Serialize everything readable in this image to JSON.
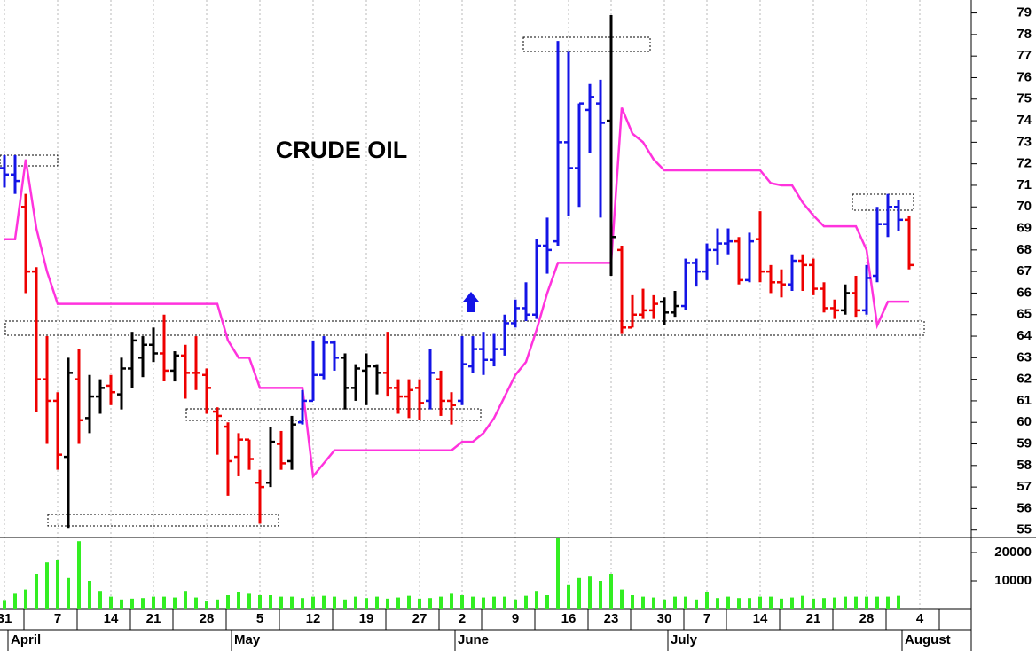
{
  "chart_data": {
    "type": "ohlc",
    "title": "CRUDE OIL",
    "categories": [
      "31",
      null,
      null,
      null,
      null,
      "7",
      null,
      null,
      null,
      null,
      "14",
      null,
      null,
      null,
      "21",
      null,
      null,
      null,
      null,
      "28",
      null,
      null,
      null,
      null,
      "5",
      null,
      null,
      null,
      null,
      "12",
      null,
      null,
      null,
      null,
      "19",
      null,
      null,
      null,
      null,
      "27",
      null,
      null,
      null,
      "2",
      null,
      null,
      null,
      null,
      "9",
      null,
      null,
      null,
      null,
      "16",
      null,
      null,
      null,
      "23",
      null,
      null,
      null,
      null,
      "30",
      null,
      null,
      null,
      "7",
      null,
      null,
      null,
      null,
      "14",
      null,
      null,
      null,
      null,
      "21",
      null,
      null,
      null,
      null,
      "28",
      null,
      null,
      null,
      null,
      "4"
    ],
    "months": [
      "April",
      "May",
      "June",
      "July",
      "August"
    ],
    "open": [
      71.8,
      71.5,
      70.0,
      67.0,
      62.0,
      61.0,
      58.4,
      62.0,
      60.2,
      61.2,
      61.7,
      61.3,
      62.5,
      63.0,
      63.6,
      63.2,
      62.4,
      63.1,
      62.3,
      62.2,
      60.5,
      59.8,
      58.4,
      59.2,
      57.2,
      57.2,
      59.0,
      58.2,
      60.0,
      61.0,
      62.2,
      63.7,
      63.0,
      61.6,
      62.4,
      62.6,
      62.3,
      61.6,
      61.2,
      61.6,
      61.0,
      62.0,
      61.0,
      61.0,
      62.6,
      63.4,
      62.9,
      63.4,
      64.6,
      65.3,
      65.0,
      68.2,
      68.4,
      73.0,
      71.8,
      74.5,
      74.8,
      74.0,
      68.0,
      64.4,
      65.0,
      65.2,
      65.6,
      65.1,
      65.4,
      67.4,
      67.0,
      68.0,
      68.3,
      68.4,
      66.6,
      68.5,
      67.0,
      66.5,
      66.4,
      67.5,
      67.3,
      66.2,
      65.3,
      65.2,
      66.0,
      65.2,
      66.8,
      69.2,
      70.0,
      69.4,
      null
    ],
    "high": [
      72.4,
      72.4,
      70.6,
      67.2,
      64.0,
      61.4,
      63.0,
      63.4,
      62.2,
      62.0,
      62.2,
      63.0,
      64.2,
      64.0,
      64.4,
      65.0,
      63.3,
      63.6,
      64.0,
      62.5,
      60.7,
      60.0,
      59.5,
      59.2,
      57.8,
      59.8,
      59.6,
      60.3,
      61.5,
      63.8,
      64.0,
      63.8,
      63.2,
      62.7,
      63.2,
      62.7,
      64.2,
      62.0,
      62.0,
      62.0,
      63.4,
      62.4,
      61.4,
      64.0,
      64.0,
      64.2,
      64.1,
      65.0,
      65.7,
      66.5,
      68.5,
      69.5,
      77.7,
      77.2,
      74.8,
      75.7,
      75.9,
      78.9,
      68.2,
      65.9,
      66.2,
      65.9,
      65.8,
      66.1,
      67.6,
      67.6,
      68.3,
      69.0,
      69.0,
      68.6,
      68.8,
      69.8,
      67.3,
      67.1,
      67.8,
      67.8,
      67.6,
      66.5,
      65.7,
      66.4,
      66.8,
      67.3,
      70.0,
      70.6,
      70.3,
      69.6,
      null
    ],
    "low": [
      70.9,
      70.6,
      66.0,
      60.5,
      59.0,
      57.8,
      55.1,
      59.0,
      59.5,
      60.4,
      60.8,
      60.6,
      61.6,
      62.1,
      62.8,
      61.9,
      61.9,
      61.1,
      61.5,
      60.4,
      58.5,
      56.6,
      57.5,
      57.8,
      55.3,
      57.0,
      57.8,
      57.8,
      59.9,
      61.0,
      62.0,
      62.4,
      60.6,
      61.0,
      60.8,
      61.3,
      61.2,
      60.4,
      60.2,
      60.1,
      60.6,
      60.3,
      59.9,
      60.8,
      62.3,
      62.2,
      62.6,
      63.1,
      64.4,
      64.7,
      64.8,
      66.9,
      68.2,
      69.6,
      70.0,
      72.5,
      69.5,
      66.8,
      64.1,
      64.4,
      64.8,
      64.8,
      64.5,
      64.9,
      65.2,
      66.3,
      66.6,
      67.3,
      67.8,
      66.4,
      66.5,
      66.5,
      66.0,
      65.8,
      66.1,
      66.1,
      65.9,
      65.1,
      64.8,
      65.0,
      64.9,
      65.0,
      66.5,
      68.6,
      68.9,
      67.1,
      null
    ],
    "close": [
      71.5,
      71.2,
      67.0,
      62.0,
      61.0,
      58.5,
      62.3,
      60.1,
      61.2,
      61.6,
      61.4,
      62.5,
      63.8,
      63.6,
      63.2,
      62.4,
      63.1,
      62.3,
      62.3,
      61.6,
      60.3,
      58.2,
      59.2,
      58.3,
      57.0,
      59.1,
      58.1,
      59.9,
      61.0,
      62.2,
      63.7,
      63.0,
      61.6,
      62.5,
      62.6,
      62.3,
      61.6,
      61.2,
      61.5,
      60.9,
      62.3,
      61.0,
      60.8,
      62.7,
      63.4,
      62.9,
      63.4,
      64.6,
      65.3,
      65.0,
      68.2,
      68.0,
      73.0,
      71.8,
      74.8,
      75.1,
      73.9,
      68.6,
      64.4,
      65.0,
      65.2,
      65.5,
      65.1,
      65.4,
      67.4,
      67.0,
      68.0,
      68.3,
      68.4,
      66.6,
      68.4,
      67.0,
      66.5,
      66.4,
      67.5,
      67.3,
      66.2,
      65.3,
      65.2,
      66.0,
      65.2,
      66.7,
      69.2,
      70.0,
      69.4,
      67.3,
      null
    ],
    "bar_colors": [
      "#1414e6",
      "#1414e6",
      "#ee0000",
      "#ee0000",
      "#ee0000",
      "#ee0000",
      "#000000",
      "#ee0000",
      "#000000",
      "#000000",
      "#ee0000",
      "#000000",
      "#000000",
      "#000000",
      "#000000",
      "#ee0000",
      "#000000",
      "#ee0000",
      "#ee0000",
      "#ee0000",
      "#ee0000",
      "#ee0000",
      "#ee0000",
      "#ee0000",
      "#ee0000",
      "#000000",
      "#ee0000",
      "#000000",
      "#1414e6",
      "#1414e6",
      "#1414e6",
      "#1414e6",
      "#000000",
      "#000000",
      "#000000",
      "#000000",
      "#ee0000",
      "#ee0000",
      "#ee0000",
      "#ee0000",
      "#1414e6",
      "#ee0000",
      "#ee0000",
      "#1414e6",
      "#1414e6",
      "#1414e6",
      "#1414e6",
      "#1414e6",
      "#1414e6",
      "#1414e6",
      "#1414e6",
      "#1414e6",
      "#1414e6",
      "#1414e6",
      "#1414e6",
      "#1414e6",
      "#1414e6",
      "#000000",
      "#ee0000",
      "#ee0000",
      "#ee0000",
      "#ee0000",
      "#000000",
      "#000000",
      "#1414e6",
      "#1414e6",
      "#1414e6",
      "#1414e6",
      "#1414e6",
      "#ee0000",
      "#1414e6",
      "#ee0000",
      "#ee0000",
      "#ee0000",
      "#1414e6",
      "#ee0000",
      "#ee0000",
      "#ee0000",
      "#ee0000",
      "#000000",
      "#ee0000",
      "#1414e6",
      "#1414e6",
      "#1414e6",
      "#1414e6",
      "#ee0000",
      null
    ],
    "ylim": [
      54.7,
      79.6
    ],
    "yticks": [
      55,
      56,
      57,
      58,
      59,
      60,
      61,
      62,
      63,
      64,
      65,
      66,
      67,
      68,
      69,
      70,
      71,
      72,
      73,
      74,
      75,
      76,
      77,
      78,
      79
    ],
    "xgrid": true,
    "line": {
      "color": "#ff33dd",
      "values": [
        68.5,
        68.5,
        72.2,
        69.0,
        67.0,
        65.5,
        65.5,
        65.5,
        65.5,
        65.5,
        65.5,
        65.5,
        65.5,
        65.5,
        65.5,
        65.5,
        65.5,
        65.5,
        65.5,
        65.5,
        65.5,
        63.8,
        63.0,
        63.0,
        61.6,
        61.6,
        61.6,
        61.6,
        61.6,
        57.5,
        58.1,
        58.7,
        58.7,
        58.7,
        58.7,
        58.7,
        58.7,
        58.7,
        58.7,
        58.7,
        58.7,
        58.7,
        58.7,
        59.1,
        59.1,
        59.5,
        60.2,
        61.2,
        62.2,
        62.8,
        64.3,
        66.0,
        67.4,
        67.4,
        67.4,
        67.4,
        67.4,
        67.4,
        74.6,
        73.4,
        73.0,
        72.2,
        71.7,
        71.7,
        71.7,
        71.7,
        71.7,
        71.7,
        71.7,
        71.7,
        71.7,
        71.7,
        71.1,
        71.0,
        71.0,
        70.2,
        69.6,
        69.1,
        69.1,
        69.1,
        69.1,
        68.0,
        64.5,
        65.6,
        65.6,
        65.6,
        null
      ]
    },
    "volume": {
      "type": "bar",
      "color": "#33ee22",
      "values": [
        3000,
        5500,
        7000,
        12500,
        16500,
        17500,
        11000,
        24000,
        10000,
        6500,
        4500,
        3500,
        3800,
        4000,
        4500,
        4500,
        4200,
        6500,
        4200,
        2800,
        3500,
        5000,
        6000,
        5500,
        5000,
        5000,
        4500,
        4500,
        4000,
        4500,
        4800,
        4500,
        3500,
        4500,
        4000,
        4500,
        3800,
        4200,
        4800,
        3800,
        4000,
        4500,
        5500,
        5000,
        4500,
        4200,
        4500,
        4500,
        3500,
        4800,
        6500,
        5000,
        25000,
        8500,
        11000,
        11500,
        10000,
        12500,
        7000,
        5000,
        4500,
        4200,
        3500,
        4500,
        4500,
        3500,
        6000,
        4000,
        4500,
        4000,
        4000,
        4500,
        4500,
        3800,
        4200,
        4800,
        3800,
        4000,
        4200,
        4500,
        4500,
        4500,
        4500,
        4500,
        4800,
        null,
        null
      ],
      "ylim": [
        0,
        25000
      ],
      "yticks": [
        10000,
        20000
      ]
    }
  }
}
